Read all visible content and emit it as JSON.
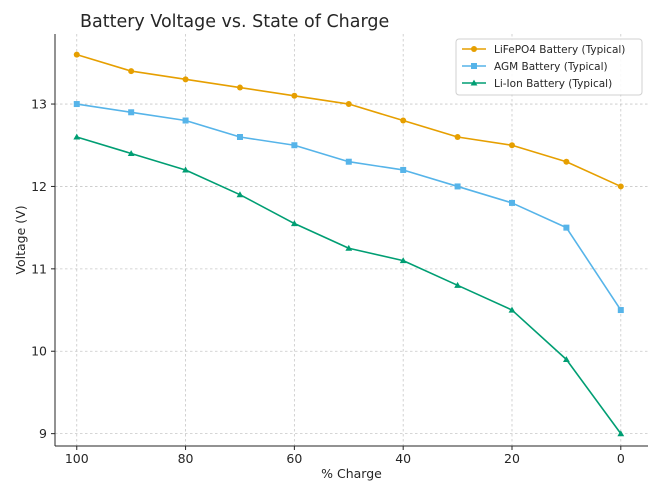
{
  "chart_data": {
    "type": "line",
    "title": "Battery Voltage vs. State of Charge",
    "xlabel": "% Charge",
    "ylabel": "Voltage (V)",
    "x": [
      100,
      90,
      80,
      70,
      60,
      50,
      40,
      30,
      20,
      10,
      0
    ],
    "xlim": [
      104,
      -5
    ],
    "ylim": [
      8.85,
      13.85
    ],
    "x_ticks": [
      100,
      80,
      60,
      40,
      20,
      0
    ],
    "y_ticks": [
      9,
      10,
      11,
      12,
      13
    ],
    "x_tick_labels": [
      "100",
      "80",
      "60",
      "40",
      "20",
      "0"
    ],
    "y_tick_labels": [
      "9",
      "10",
      "11",
      "12",
      "13"
    ],
    "grid": true,
    "legend_position": "top-right",
    "series": [
      {
        "name": "LiFePO4 Battery (Typical)",
        "color": "#E69F00",
        "marker": "circle",
        "values": [
          13.6,
          13.4,
          13.3,
          13.2,
          13.1,
          13.0,
          12.8,
          12.6,
          12.5,
          12.3,
          12.0
        ]
      },
      {
        "name": "AGM Battery (Typical)",
        "color": "#56B4E9",
        "marker": "square",
        "values": [
          13.0,
          12.9,
          12.8,
          12.6,
          12.5,
          12.3,
          12.2,
          12.0,
          11.8,
          11.5,
          10.5
        ]
      },
      {
        "name": "Li-Ion Battery (Typical)",
        "color": "#009E73",
        "marker": "triangle",
        "values": [
          12.6,
          12.4,
          12.2,
          11.9,
          11.55,
          11.25,
          11.1,
          10.8,
          10.5,
          9.9,
          9.0
        ]
      }
    ]
  }
}
